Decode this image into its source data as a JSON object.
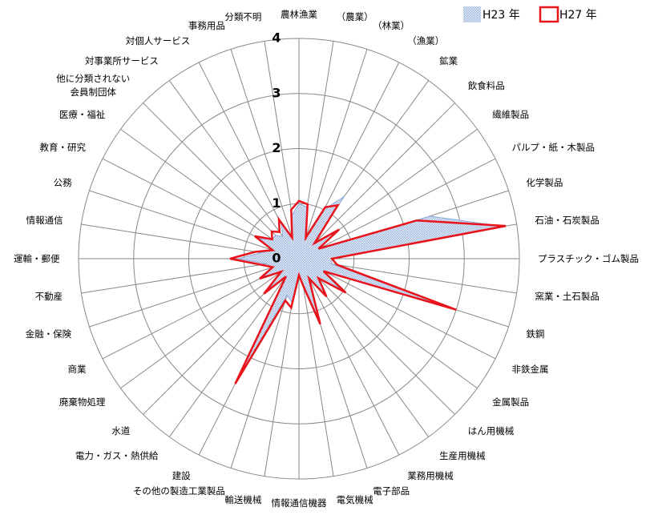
{
  "chart_data": {
    "type": "radar",
    "categories": [
      "農林漁業",
      "（農業）",
      "（林業）",
      "（漁業）",
      "鉱業",
      "飲食料品",
      "繊維製品",
      "パルプ・紙・木製品",
      "化学製品",
      "石油・石炭製品",
      "プラスチック・ゴム製品",
      "窯業・土石製品",
      "鉄鋼",
      "非鉄金属",
      "金属製品",
      "はん用機械",
      "生産用機械",
      "業務用機械",
      "電子部品",
      "電気機械",
      "情報通信機器",
      "輸送機械",
      "その他の製造工業製品",
      "建設",
      "電力・ガス・熱供給",
      "水道",
      "廃棄物処理",
      "商業",
      "金融・保険",
      "不動産",
      "運輸・郵便",
      "情報通信",
      "公務",
      "教育・研究",
      "医療・福祉",
      "他に分類されない\n会員制団体",
      "対事業所サービス",
      "対個人サービス",
      "事務用品",
      "分類不明"
    ],
    "series": [
      {
        "name": "H23 年",
        "color": "#b8cce4",
        "values": [
          1.0,
          0.95,
          0.4,
          1.0,
          1.4,
          0.4,
          0.8,
          0.4,
          2.5,
          3.75,
          0.6,
          0.6,
          2.9,
          0.5,
          0.9,
          0.5,
          0.8,
          0.4,
          1.15,
          0.5,
          0.3,
          0.8,
          0.7,
          2.4,
          0.4,
          0.8,
          0.4,
          0.7,
          0.5,
          0.6,
          1.1,
          0.7,
          0.5,
          0.8,
          0.6,
          0.6,
          0.5,
          0.7,
          0.4,
          0.8
        ]
      },
      {
        "name": "H27 年",
        "color": "#e8131b",
        "values": [
          1.05,
          1.0,
          0.4,
          1.05,
          1.2,
          0.4,
          0.9,
          0.4,
          2.25,
          3.8,
          0.6,
          0.7,
          3.0,
          0.5,
          1.05,
          0.5,
          0.85,
          0.4,
          1.25,
          0.5,
          0.3,
          0.9,
          0.8,
          2.55,
          0.4,
          0.9,
          0.4,
          0.8,
          0.5,
          0.7,
          1.25,
          0.8,
          0.5,
          0.9,
          0.6,
          0.7,
          0.6,
          0.8,
          0.4,
          0.9
        ]
      }
    ],
    "rlim": [
      0,
      4
    ],
    "rticks": [
      0,
      1,
      2,
      3,
      4
    ],
    "grid": true,
    "legend": "top-right"
  }
}
